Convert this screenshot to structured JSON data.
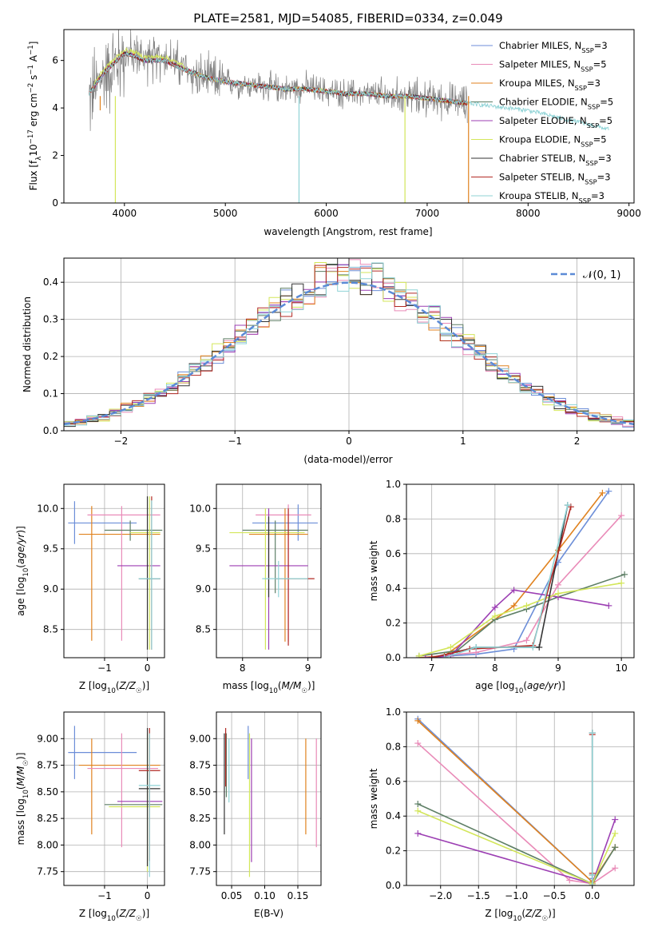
{
  "figure": {
    "title": "PLATE=2581, MJD=54085, FIBERID=0334, z=0.049",
    "series_colors": [
      "#6c8ed8",
      "#e98bb8",
      "#e0821f",
      "#5e7f66",
      "#9c3fb3",
      "#d3e65a",
      "#333333",
      "#b22a24",
      "#8fd3d6"
    ],
    "series_names": [
      "Chabrier MILES",
      "Salpeter MILES",
      "Kroupa MILES",
      "Chabrier ELODIE",
      "Salpeter ELODIE",
      "Kroupa ELODIE",
      "Chabrier STELIB",
      "Salpeter STELIB",
      "Kroupa STELIB"
    ],
    "nssp": [
      3,
      5,
      3,
      5,
      5,
      5,
      3,
      3,
      3
    ]
  },
  "chart_data": [
    {
      "id": "spectrum",
      "type": "line",
      "xlabel": "wavelength [Angstrom, rest frame]",
      "ylabel": "Flux [f",
      "xlim": [
        3400,
        9050
      ],
      "ylim": [
        0,
        7.3
      ],
      "xticks": [
        4000,
        5000,
        6000,
        7000,
        8000,
        9000
      ],
      "yticks": [
        0,
        2,
        4,
        6
      ],
      "legend_loc": "upper right",
      "data_color": "#808080",
      "observed": {
        "x": [
          3650,
          3700,
          3800,
          3900,
          4000,
          4100,
          4200,
          4300,
          4400,
          4500,
          4600,
          4700,
          4800,
          4900,
          5000,
          5200,
          5400,
          5600,
          5800,
          6000,
          6200,
          6400,
          6600,
          6800,
          7000,
          7200,
          7400
        ],
        "y": [
          4.3,
          4.8,
          5.4,
          5.8,
          6.2,
          6.3,
          6.1,
          6.0,
          6.2,
          5.9,
          5.6,
          5.4,
          5.2,
          5.2,
          5.1,
          5.0,
          4.9,
          4.8,
          4.9,
          4.7,
          4.6,
          4.6,
          4.5,
          4.5,
          4.4,
          4.3,
          4.2
        ]
      },
      "models": {
        "x": [
          3650,
          3700,
          3800,
          3900,
          4000,
          4100,
          4200,
          4300,
          4400,
          4500,
          4600,
          4800,
          5000,
          5200,
          5400,
          5600,
          5800,
          6000,
          6200,
          6400,
          6600,
          6800,
          7000,
          7200,
          7400,
          7600,
          7800,
          8000,
          8200,
          8400,
          8600,
          8800
        ],
        "y": [
          4.6,
          4.9,
          5.5,
          5.9,
          6.3,
          6.2,
          6.0,
          6.0,
          6.0,
          5.8,
          5.6,
          5.3,
          5.1,
          5.0,
          4.9,
          4.8,
          4.8,
          4.7,
          4.6,
          4.6,
          4.5,
          4.5,
          4.4,
          4.3,
          4.2,
          4.1,
          4.0,
          3.9,
          3.7,
          3.5,
          3.3,
          3.1
        ]
      }
    },
    {
      "id": "residuals",
      "type": "step",
      "xlabel": "(data-model)/error",
      "ylabel": "Normed distribution",
      "xlim": [
        -2.5,
        2.5
      ],
      "ylim": [
        0,
        0.465
      ],
      "xticks": [
        -2,
        -1,
        0,
        1,
        2
      ],
      "yticks": [
        0,
        0.1,
        0.2,
        0.3,
        0.4
      ],
      "legend": "𝒩(0, 1)",
      "legend_loc": "upper right",
      "bin_width": 0.1
    },
    {
      "id": "age-vs-z",
      "type": "errorbar",
      "xlabel": "Z [log10(Z/Z☉)]",
      "ylabel": "age  [log10(age/yr)]",
      "xlim": [
        -1.95,
        0.4
      ],
      "ylim": [
        8.15,
        10.3
      ],
      "xticks": [
        -1,
        0
      ],
      "yticks": [
        8.5,
        9.0,
        9.5,
        10.0
      ],
      "points": [
        {
          "x": -1.7,
          "y": 9.82,
          "xe": [
            -1.85,
            -0.25
          ],
          "ye": [
            9.56,
            10.09
          ],
          "c": 0
        },
        {
          "x": -1.3,
          "y": 9.68,
          "xe": [
            -1.6,
            0.3
          ],
          "ye": [
            8.36,
            10.03
          ],
          "c": 2
        },
        {
          "x": -0.6,
          "y": 9.92,
          "xe": [
            -1.4,
            0.3
          ],
          "ye": [
            8.36,
            10.03
          ],
          "c": 1
        },
        {
          "x": -0.4,
          "y": 9.73,
          "xe": [
            -1.0,
            0.35
          ],
          "ye": [
            9.6,
            9.85
          ],
          "c": 3
        },
        {
          "x": -0.4,
          "y": 9.29,
          "xe": [
            -0.7,
            0.3
          ],
          "ye": [
            9.29,
            9.29
          ],
          "c": 4
        },
        {
          "x": 0.05,
          "y": 9.7,
          "xe": [
            -0.4,
            0.3
          ],
          "ye": [
            8.25,
            10.15
          ],
          "c": 5
        },
        {
          "x": 0.0,
          "y": 9.13,
          "xe": [
            -0.2,
            0.3
          ],
          "ye": [
            8.25,
            10.15
          ],
          "c": 6
        },
        {
          "x": 0.1,
          "y": 9.13,
          "xe": [
            0.05,
            0.3
          ],
          "ye": [
            8.25,
            10.15
          ],
          "c": 7
        },
        {
          "x": 0.1,
          "y": 9.13,
          "xe": [
            -0.2,
            0.3
          ],
          "ye": [
            8.25,
            10.1
          ],
          "c": 8
        }
      ]
    },
    {
      "id": "age-vs-mass",
      "type": "errorbar",
      "xlabel": "mass [log10(M/M☉)]",
      "ylabel": "",
      "xlim": [
        7.6,
        9.2
      ],
      "ylim": [
        8.15,
        10.3
      ],
      "xticks": [
        8,
        9
      ],
      "yticks": [
        8.5,
        9.0,
        9.5,
        10.0
      ],
      "points": [
        {
          "x": 8.85,
          "y": 9.82,
          "xe": [
            8.15,
            9.15
          ],
          "ye": [
            9.6,
            10.05
          ],
          "c": 0
        },
        {
          "x": 8.7,
          "y": 9.92,
          "xe": [
            8.2,
            9.05
          ],
          "ye": [
            8.35,
            10.05
          ],
          "c": 1
        },
        {
          "x": 8.65,
          "y": 9.68,
          "xe": [
            8.1,
            9.0
          ],
          "ye": [
            8.35,
            10.0
          ],
          "c": 2
        },
        {
          "x": 8.5,
          "y": 9.73,
          "xe": [
            8.0,
            9.0
          ],
          "ye": [
            8.95,
            9.85
          ],
          "c": 3
        },
        {
          "x": 8.4,
          "y": 9.29,
          "xe": [
            7.8,
            9.0
          ],
          "ye": [
            8.25,
            10.0
          ],
          "c": 4
        },
        {
          "x": 8.35,
          "y": 9.7,
          "xe": [
            7.8,
            8.95
          ],
          "ye": [
            8.25,
            10.0
          ],
          "c": 5
        },
        {
          "x": 8.4,
          "y": 9.82,
          "xe": [
            8.4,
            8.4
          ],
          "ye": [
            8.9,
            9.9
          ],
          "c": 6
        },
        {
          "x": 8.7,
          "y": 9.13,
          "xe": [
            8.5,
            9.1
          ],
          "ye": [
            8.3,
            10.0
          ],
          "c": 7
        },
        {
          "x": 8.55,
          "y": 9.13,
          "xe": [
            8.3,
            9.0
          ],
          "ye": [
            8.9,
            9.35
          ],
          "c": 8
        }
      ]
    },
    {
      "id": "mass-weight-vs-age",
      "type": "line",
      "xlabel": "age  [log10(age/yr)]",
      "ylabel": "mass weight",
      "xlim": [
        6.6,
        10.2
      ],
      "ylim": [
        0,
        1.0
      ],
      "xticks": [
        7,
        8,
        9,
        10
      ],
      "yticks": [
        0.0,
        0.2,
        0.4,
        0.6,
        0.8,
        1.0
      ],
      "series": [
        {
          "c": 0,
          "x": [
            6.8,
            7.7,
            8.3,
            9.0,
            9.8
          ],
          "y": [
            0.0,
            0.02,
            0.05,
            0.55,
            0.96
          ]
        },
        {
          "c": 1,
          "x": [
            6.8,
            7.7,
            8.5,
            9.0,
            10.0
          ],
          "y": [
            0.0,
            0.03,
            0.1,
            0.42,
            0.82
          ]
        },
        {
          "c": 2,
          "x": [
            6.8,
            7.2,
            8.3,
            9.0,
            9.7
          ],
          "y": [
            0.0,
            0.01,
            0.3,
            0.62,
            0.95
          ]
        },
        {
          "c": 3,
          "x": [
            6.8,
            7.4,
            8.0,
            8.5,
            9.0,
            10.05
          ],
          "y": [
            0.01,
            0.04,
            0.22,
            0.28,
            0.35,
            0.48
          ]
        },
        {
          "c": 4,
          "x": [
            6.9,
            7.3,
            8.0,
            8.3,
            9.0,
            9.8
          ],
          "y": [
            0.0,
            0.01,
            0.29,
            0.39,
            0.35,
            0.3
          ]
        },
        {
          "c": 5,
          "x": [
            6.8,
            7.3,
            8.0,
            8.5,
            9.0,
            10.0
          ],
          "y": [
            0.01,
            0.06,
            0.24,
            0.3,
            0.37,
            0.43
          ]
        },
        {
          "c": 6,
          "x": [
            7.0,
            7.7,
            8.7,
            9.15
          ],
          "y": [
            0.0,
            0.06,
            0.06,
            0.88
          ]
        },
        {
          "c": 7,
          "x": [
            7.0,
            7.6,
            8.6,
            9.2
          ],
          "y": [
            0.0,
            0.05,
            0.07,
            0.87
          ]
        },
        {
          "c": 8,
          "x": [
            7.2,
            7.7,
            8.6,
            9.15
          ],
          "y": [
            0.0,
            0.06,
            0.06,
            0.88
          ]
        }
      ]
    },
    {
      "id": "mass-vs-z",
      "type": "errorbar",
      "xlabel": "Z [log10(Z/Z☉)]",
      "ylabel": "mass [log10(M/M☉)]",
      "xlim": [
        -1.95,
        0.4
      ],
      "ylim": [
        7.62,
        9.25
      ],
      "xticks": [
        -1,
        0
      ],
      "yticks": [
        7.75,
        8.0,
        8.25,
        8.5,
        8.75,
        9.0
      ],
      "points": [
        {
          "x": -1.7,
          "y": 8.87,
          "xe": [
            -1.85,
            -0.25
          ],
          "ye": [
            8.62,
            9.12
          ],
          "c": 0
        },
        {
          "x": -1.3,
          "y": 8.75,
          "xe": [
            -1.6,
            0.3
          ],
          "ye": [
            8.1,
            9.0
          ],
          "c": 2
        },
        {
          "x": -0.6,
          "y": 8.72,
          "xe": [
            -1.4,
            0.25
          ],
          "ye": [
            7.98,
            9.05
          ],
          "c": 1
        },
        {
          "x": -0.4,
          "y": 8.38,
          "xe": [
            -1.0,
            0.35
          ],
          "ye": [
            8.38,
            8.38
          ],
          "c": 3
        },
        {
          "x": -0.4,
          "y": 8.41,
          "xe": [
            -0.7,
            0.35
          ],
          "ye": [
            8.41,
            8.41
          ],
          "c": 4
        },
        {
          "x": 0.0,
          "y": 8.36,
          "xe": [
            -0.9,
            0.3
          ],
          "ye": [
            7.75,
            9.05
          ],
          "c": 5
        },
        {
          "x": 0.0,
          "y": 8.53,
          "xe": [
            -0.2,
            0.3
          ],
          "ye": [
            7.8,
            9.1
          ],
          "c": 6
        },
        {
          "x": 0.05,
          "y": 8.7,
          "xe": [
            -0.2,
            0.3
          ],
          "ye": [
            7.85,
            9.1
          ],
          "c": 7
        },
        {
          "x": 0.05,
          "y": 8.56,
          "xe": [
            -0.2,
            0.3
          ],
          "ye": [
            7.7,
            9.05
          ],
          "c": 8
        }
      ]
    },
    {
      "id": "mass-vs-ebv",
      "type": "errorbar",
      "xlabel": "E(B-V)",
      "ylabel": "",
      "xlim": [
        0.027,
        0.185
      ],
      "ylim": [
        7.62,
        9.25
      ],
      "xticks": [
        0.05,
        0.1,
        0.15
      ],
      "yticks": [
        7.75,
        8.0,
        8.25,
        8.5,
        8.75,
        9.0
      ],
      "points": [
        {
          "x": 0.075,
          "y": 8.87,
          "ye": [
            8.62,
            9.12
          ],
          "c": 0
        },
        {
          "x": 0.178,
          "y": 8.72,
          "ye": [
            7.98,
            9.0
          ],
          "c": 1
        },
        {
          "x": 0.162,
          "y": 8.75,
          "ye": [
            8.1,
            9.0
          ],
          "c": 2
        },
        {
          "x": 0.042,
          "y": 8.6,
          "ye": [
            8.45,
            9.05
          ],
          "c": 3
        },
        {
          "x": 0.08,
          "y": 8.41,
          "ye": [
            7.84,
            9.0
          ],
          "c": 4
        },
        {
          "x": 0.077,
          "y": 8.36,
          "ye": [
            7.7,
            9.05
          ],
          "c": 5
        },
        {
          "x": 0.039,
          "y": 8.6,
          "ye": [
            8.1,
            9.05
          ],
          "c": 6
        },
        {
          "x": 0.041,
          "y": 8.7,
          "ye": [
            8.55,
            9.1
          ],
          "c": 7
        },
        {
          "x": 0.046,
          "y": 8.56,
          "ye": [
            8.4,
            9.0
          ],
          "c": 8
        }
      ]
    },
    {
      "id": "mass-weight-vs-z",
      "type": "line",
      "xlabel": "Z [log10(Z/Z☉)]",
      "ylabel": "mass weight",
      "xlim": [
        -2.45,
        0.55
      ],
      "ylim": [
        0,
        1.0
      ],
      "xticks": [
        -2.0,
        -1.5,
        -1.0,
        -0.5,
        0.0
      ],
      "yticks": [
        0.0,
        0.2,
        0.4,
        0.6,
        0.8,
        1.0
      ],
      "series": [
        {
          "c": 0,
          "x": [
            -2.3,
            0.0,
            0.0
          ],
          "y": [
            0.96,
            0.02,
            0.04
          ]
        },
        {
          "c": 1,
          "x": [
            -2.3,
            -0.3,
            0.0,
            0.3
          ],
          "y": [
            0.82,
            0.03,
            0.01,
            0.1
          ]
        },
        {
          "c": 2,
          "x": [
            -2.3,
            0.0,
            0.3
          ],
          "y": [
            0.95,
            0.02,
            0.22
          ]
        },
        {
          "c": 3,
          "x": [
            -2.3,
            0.0,
            0.3
          ],
          "y": [
            0.47,
            0.01,
            0.22
          ]
        },
        {
          "c": 4,
          "x": [
            -2.3,
            0.0,
            0.3
          ],
          "y": [
            0.3,
            0.01,
            0.38
          ]
        },
        {
          "c": 5,
          "x": [
            -2.3,
            0.0,
            0.3
          ],
          "y": [
            0.43,
            0.01,
            0.3
          ]
        },
        {
          "c": 6,
          "x": [
            0.0,
            0.0,
            0.0
          ],
          "y": [
            0.0,
            0.88,
            0.06
          ]
        },
        {
          "c": 7,
          "x": [
            0.0,
            0.0,
            0.0
          ],
          "y": [
            0.0,
            0.87,
            0.07
          ]
        },
        {
          "c": 8,
          "x": [
            0.0,
            0.0,
            0.0
          ],
          "y": [
            0.0,
            0.88,
            0.06
          ]
        }
      ]
    }
  ]
}
